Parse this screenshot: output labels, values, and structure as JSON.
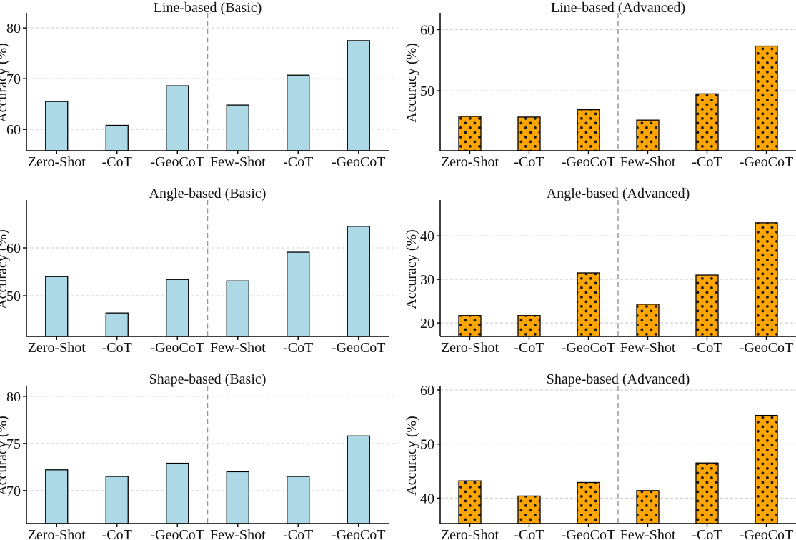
{
  "figure": {
    "ylabel": "Accuracy (%)",
    "categories": [
      "Zero-Shot",
      "-CoT",
      "-GeoCoT",
      "Few-Shot",
      "-CoT",
      "-GeoCoT"
    ],
    "separator_after_category": 3,
    "colors": {
      "basic_fill": "#ADD8E6",
      "advanced_fill": "#FFA500",
      "bar_edge": "#000000",
      "grid": "#c9c9c9",
      "separator": "#999999",
      "axis": "#000000",
      "text": "#111111",
      "hatch_dot": "#1a1a1a",
      "background": "#ffffff"
    }
  },
  "chart_data": [
    {
      "type": "bar",
      "title": "Line-based (Basic)",
      "style": "basic",
      "ylabel": "Accuracy (%)",
      "xlabel": "",
      "categories": [
        "Zero-Shot",
        "-CoT",
        "-GeoCoT",
        "Few-Shot",
        "-CoT",
        "-GeoCoT"
      ],
      "values": [
        65.5,
        60.8,
        68.6,
        64.8,
        70.7,
        77.5
      ],
      "yticks": [
        60,
        70,
        80
      ],
      "ylim": [
        55.8,
        82.7
      ],
      "grid": true,
      "legend": null
    },
    {
      "type": "bar",
      "title": "Line-based (Advanced)",
      "style": "advanced",
      "ylabel": "Accuracy (%)",
      "xlabel": "",
      "categories": [
        "Zero-Shot",
        "-CoT",
        "-GeoCoT",
        "Few-Shot",
        "-CoT",
        "-GeoCoT"
      ],
      "values": [
        45.8,
        45.7,
        46.9,
        45.2,
        49.5,
        57.3
      ],
      "yticks": [
        50,
        60
      ],
      "ylim": [
        40.2,
        62.5
      ],
      "grid": true,
      "legend": null
    },
    {
      "type": "bar",
      "title": "Angle-based (Basic)",
      "style": "basic",
      "ylabel": "Accuracy (%)",
      "xlabel": "",
      "categories": [
        "Zero-Shot",
        "-CoT",
        "-GeoCoT",
        "Few-Shot",
        "-CoT",
        "-GeoCoT"
      ],
      "values": [
        54.0,
        46.4,
        53.4,
        53.1,
        59.1,
        64.5
      ],
      "yticks": [
        50,
        60
      ],
      "ylim": [
        41.5,
        69.7
      ],
      "grid": true,
      "legend": null
    },
    {
      "type": "bar",
      "title": "Angle-based (Advanced)",
      "style": "advanced",
      "ylabel": "Accuracy (%)",
      "xlabel": "",
      "categories": [
        "Zero-Shot",
        "-CoT",
        "-GeoCoT",
        "Few-Shot",
        "-CoT",
        "-GeoCoT"
      ],
      "values": [
        21.7,
        21.7,
        31.5,
        24.3,
        31.0,
        43.0
      ],
      "yticks": [
        20,
        30,
        40
      ],
      "ylim": [
        16.9,
        47.9
      ],
      "grid": true,
      "legend": null
    },
    {
      "type": "bar",
      "title": "Shape-based (Basic)",
      "style": "basic",
      "ylabel": "Accuracy (%)",
      "xlabel": "",
      "categories": [
        "Zero-Shot",
        "-CoT",
        "-GeoCoT",
        "Few-Shot",
        "-CoT",
        "-GeoCoT"
      ],
      "values": [
        72.2,
        71.5,
        72.9,
        72.0,
        71.5,
        75.8
      ],
      "yticks": [
        70,
        75,
        80
      ],
      "ylim": [
        66.5,
        80.9
      ],
      "grid": true,
      "legend": null
    },
    {
      "type": "bar",
      "title": "Shape-based (Advanced)",
      "style": "advanced",
      "ylabel": "Accuracy (%)",
      "xlabel": "",
      "categories": [
        "Zero-Shot",
        "-CoT",
        "-GeoCoT",
        "Few-Shot",
        "-CoT",
        "-GeoCoT"
      ],
      "values": [
        43.2,
        40.4,
        42.9,
        41.4,
        46.5,
        55.3
      ],
      "yticks": [
        40,
        50,
        60
      ],
      "ylim": [
        35.3,
        60.4
      ],
      "grid": true,
      "legend": null
    }
  ]
}
